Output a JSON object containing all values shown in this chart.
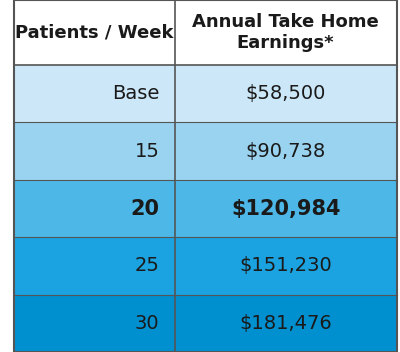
{
  "header": [
    "Patients / Week",
    "Annual Take Home\nEarnings*"
  ],
  "rows": [
    {
      "label": "Base",
      "value": "$58,500",
      "bold": false
    },
    {
      "label": "15",
      "value": "$90,738",
      "bold": false
    },
    {
      "label": "20",
      "value": "$120,984",
      "bold": true
    },
    {
      "label": "25",
      "value": "$151,230",
      "bold": false
    },
    {
      "label": "30",
      "value": "$181,476",
      "bold": false
    }
  ],
  "row_colors": [
    "#cce8f8",
    "#99d3f0",
    "#4db8e8",
    "#1aa3e0",
    "#0090d0"
  ],
  "header_bg": "#ffffff",
  "header_text_color": "#1a1a1a",
  "divider_color": "#555555",
  "text_color": "#1a1a1a",
  "col_split": 0.42,
  "figsize": [
    4.0,
    3.52
  ],
  "dpi": 100
}
